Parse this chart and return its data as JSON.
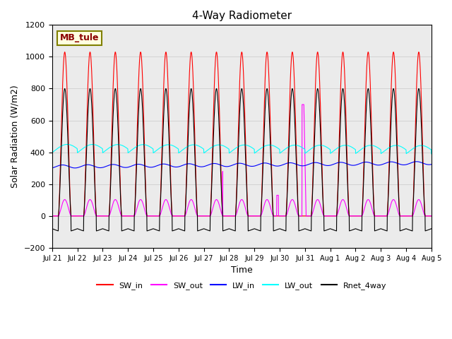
{
  "title": "4-Way Radiometer",
  "xlabel": "Time",
  "ylabel": "Solar Radiation (W/m2)",
  "ylim": [
    -200,
    1200
  ],
  "label_text": "MB_tule",
  "legend_entries": [
    "SW_in",
    "SW_out",
    "LW_in",
    "LW_out",
    "Rnet_4way"
  ],
  "legend_colors": [
    "red",
    "magenta",
    "blue",
    "cyan",
    "black"
  ],
  "tick_labels": [
    "Jul 21",
    "Jul 22",
    "Jul 23",
    "Jul 24",
    "Jul 25",
    "Jul 26",
    "Jul 27",
    "Jul 28",
    "Jul 29",
    "Jul 30",
    "Jul 31",
    "Aug 1",
    "Aug 2",
    "Aug 3",
    "Aug 4",
    "Aug 5"
  ],
  "n_days": 15,
  "sw_in_peak": 1030,
  "sw_out_ratio": 0.1,
  "lw_in_base": 310,
  "lw_out_base": 410,
  "rnet_peak": 800,
  "rnet_night": -80
}
